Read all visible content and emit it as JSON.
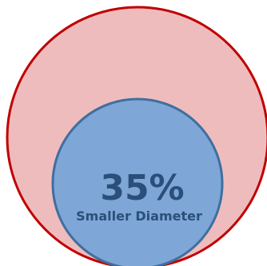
{
  "diagram": {
    "percent_label": "35%",
    "caption": "Smaller Diameter",
    "colors": {
      "outer_fill": "#efbcbe",
      "outer_stroke": "#c00000",
      "inner_fill": "#7ea6d6",
      "inner_stroke": "#3f6f9f",
      "text": "#2b4f7a"
    }
  }
}
